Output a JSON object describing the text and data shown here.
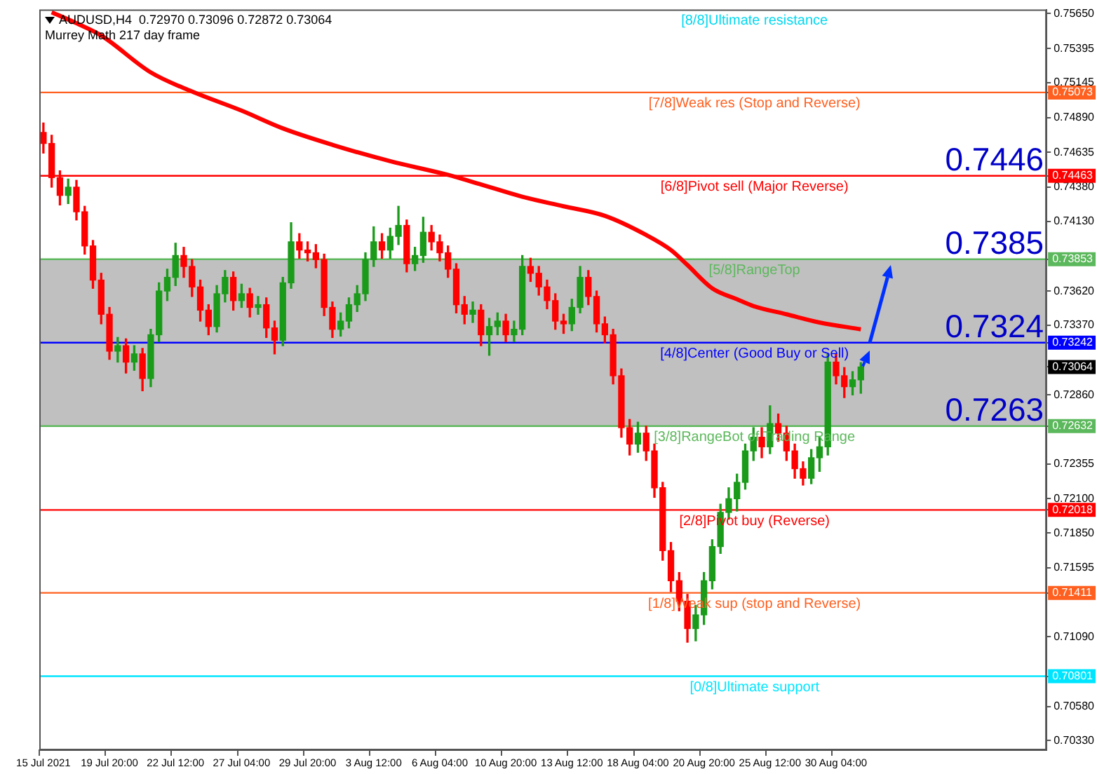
{
  "chart_data": {
    "type": "candlestick",
    "title": "AUDUSD,H4  0.72970 0.73096 0.72872 0.73064",
    "subtitle": "Murrey Math 217 day frame",
    "categories": [
      "15 Jul 2021",
      null,
      null,
      null,
      null,
      null,
      null,
      null,
      "19 Jul 20:00",
      null,
      null,
      null,
      null,
      null,
      null,
      null,
      "22 Jul 12:00",
      null,
      null,
      null,
      null,
      null,
      null,
      null,
      "27 Jul 04:00",
      null,
      null,
      null,
      null,
      null,
      null,
      null,
      "29 Jul 20:00",
      null,
      null,
      null,
      null,
      null,
      null,
      null,
      "3 Aug 12:00",
      null,
      null,
      null,
      null,
      null,
      null,
      null,
      "6 Aug 04:00",
      null,
      null,
      null,
      null,
      null,
      null,
      null,
      "10 Aug 20:00",
      null,
      null,
      null,
      null,
      null,
      null,
      null,
      "13 Aug 12:00",
      null,
      null,
      null,
      null,
      null,
      null,
      null,
      "18 Aug 04:00",
      null,
      null,
      null,
      null,
      null,
      null,
      null,
      "20 Aug 20:00",
      null,
      null,
      null,
      null,
      null,
      null,
      null,
      "25 Aug 12:00",
      null,
      null,
      null,
      null,
      null,
      null,
      null,
      "30 Aug 04:00",
      null,
      null,
      null,
      null,
      null,
      null,
      null,
      null,
      null,
      null,
      null,
      null,
      null,
      null,
      null,
      null,
      null,
      null,
      null,
      null,
      null,
      null,
      null,
      null,
      null
    ],
    "ohlc": [
      [
        0.7478,
        0.7485,
        0.7463,
        0.747
      ],
      [
        0.747,
        0.7476,
        0.7438,
        0.7445
      ],
      [
        0.7445,
        0.745,
        0.7425,
        0.7432
      ],
      [
        0.7432,
        0.7444,
        0.7426,
        0.7438
      ],
      [
        0.7438,
        0.7443,
        0.7414,
        0.742
      ],
      [
        0.742,
        0.7424,
        0.7389,
        0.7395
      ],
      [
        0.7395,
        0.7399,
        0.7364,
        0.737
      ],
      [
        0.737,
        0.7375,
        0.7338,
        0.7345
      ],
      [
        0.7345,
        0.735,
        0.7312,
        0.7318
      ],
      [
        0.7318,
        0.7328,
        0.731,
        0.7322
      ],
      [
        0.7322,
        0.7327,
        0.7302,
        0.731
      ],
      [
        0.731,
        0.7322,
        0.7304,
        0.7316
      ],
      [
        0.7316,
        0.732,
        0.7289,
        0.7298
      ],
      [
        0.7298,
        0.7334,
        0.7292,
        0.733
      ],
      [
        0.733,
        0.7368,
        0.7325,
        0.7362
      ],
      [
        0.7362,
        0.7378,
        0.7355,
        0.7372
      ],
      [
        0.7372,
        0.7397,
        0.7366,
        0.7388
      ],
      [
        0.7388,
        0.7394,
        0.7372,
        0.738
      ],
      [
        0.738,
        0.7385,
        0.7358,
        0.7365
      ],
      [
        0.7365,
        0.737,
        0.734,
        0.7348
      ],
      [
        0.7348,
        0.7352,
        0.733,
        0.7336
      ],
      [
        0.7336,
        0.7366,
        0.7332,
        0.736
      ],
      [
        0.736,
        0.7377,
        0.7354,
        0.7372
      ],
      [
        0.7372,
        0.7376,
        0.7348,
        0.7355
      ],
      [
        0.7355,
        0.7367,
        0.735,
        0.736
      ],
      [
        0.736,
        0.7364,
        0.7343,
        0.735
      ],
      [
        0.735,
        0.7358,
        0.7345,
        0.7352
      ],
      [
        0.7352,
        0.7357,
        0.7328,
        0.7335
      ],
      [
        0.7335,
        0.734,
        0.7316,
        0.7326
      ],
      [
        0.7326,
        0.7372,
        0.7322,
        0.7368
      ],
      [
        0.7368,
        0.7412,
        0.7364,
        0.7398
      ],
      [
        0.7398,
        0.7404,
        0.7386,
        0.7392
      ],
      [
        0.7392,
        0.7398,
        0.7384,
        0.739
      ],
      [
        0.739,
        0.7396,
        0.7379,
        0.7385
      ],
      [
        0.7385,
        0.7389,
        0.7344,
        0.735
      ],
      [
        0.735,
        0.7354,
        0.7328,
        0.7334
      ],
      [
        0.7334,
        0.7346,
        0.7329,
        0.734
      ],
      [
        0.734,
        0.7357,
        0.7335,
        0.7352
      ],
      [
        0.7352,
        0.7366,
        0.7347,
        0.736
      ],
      [
        0.736,
        0.739,
        0.7355,
        0.7385
      ],
      [
        0.7385,
        0.7409,
        0.738,
        0.7398
      ],
      [
        0.7398,
        0.7404,
        0.7386,
        0.7392
      ],
      [
        0.7392,
        0.7408,
        0.7386,
        0.7402
      ],
      [
        0.7402,
        0.7424,
        0.7396,
        0.741
      ],
      [
        0.741,
        0.7414,
        0.7376,
        0.7382
      ],
      [
        0.7382,
        0.7394,
        0.7377,
        0.7388
      ],
      [
        0.7388,
        0.7416,
        0.7383,
        0.7405
      ],
      [
        0.7405,
        0.741,
        0.7392,
        0.7398
      ],
      [
        0.7398,
        0.7403,
        0.7384,
        0.739
      ],
      [
        0.739,
        0.7395,
        0.7372,
        0.7378
      ],
      [
        0.7378,
        0.7382,
        0.7346,
        0.7352
      ],
      [
        0.7352,
        0.7358,
        0.7338,
        0.7345
      ],
      [
        0.7345,
        0.7354,
        0.7339,
        0.7348
      ],
      [
        0.7348,
        0.7352,
        0.7322,
        0.733
      ],
      [
        0.733,
        0.7342,
        0.7315,
        0.7336
      ],
      [
        0.7336,
        0.7346,
        0.733,
        0.734
      ],
      [
        0.734,
        0.7345,
        0.7325,
        0.733
      ],
      [
        0.733,
        0.734,
        0.7325,
        0.7334
      ],
      [
        0.7334,
        0.7388,
        0.733,
        0.738
      ],
      [
        0.738,
        0.7386,
        0.7369,
        0.7375
      ],
      [
        0.7375,
        0.738,
        0.7359,
        0.7365
      ],
      [
        0.7365,
        0.737,
        0.7349,
        0.7355
      ],
      [
        0.7355,
        0.736,
        0.7334,
        0.734
      ],
      [
        0.734,
        0.7345,
        0.7331,
        0.7338
      ],
      [
        0.7338,
        0.7356,
        0.7333,
        0.735
      ],
      [
        0.735,
        0.738,
        0.7346,
        0.7372
      ],
      [
        0.7372,
        0.7377,
        0.7352,
        0.7358
      ],
      [
        0.7358,
        0.7362,
        0.7332,
        0.7338
      ],
      [
        0.7338,
        0.7343,
        0.7324,
        0.733
      ],
      [
        0.733,
        0.7334,
        0.7294,
        0.73
      ],
      [
        0.73,
        0.7305,
        0.7255,
        0.7262
      ],
      [
        0.7262,
        0.7268,
        0.7242,
        0.725
      ],
      [
        0.725,
        0.7266,
        0.7244,
        0.7258
      ],
      [
        0.7258,
        0.7263,
        0.7238,
        0.7245
      ],
      [
        0.7245,
        0.725,
        0.7211,
        0.7218
      ],
      [
        0.7218,
        0.7222,
        0.7165,
        0.7172
      ],
      [
        0.7172,
        0.7178,
        0.7142,
        0.715
      ],
      [
        0.715,
        0.7156,
        0.7128,
        0.7135
      ],
      [
        0.7135,
        0.714,
        0.7105,
        0.7115
      ],
      [
        0.7115,
        0.7132,
        0.7106,
        0.7125
      ],
      [
        0.7125,
        0.7156,
        0.7118,
        0.715
      ],
      [
        0.715,
        0.718,
        0.7144,
        0.7175
      ],
      [
        0.7175,
        0.7206,
        0.717,
        0.72
      ],
      [
        0.72,
        0.7218,
        0.7195,
        0.721
      ],
      [
        0.721,
        0.7228,
        0.7201,
        0.7222
      ],
      [
        0.7222,
        0.725,
        0.7217,
        0.7245
      ],
      [
        0.7245,
        0.7262,
        0.7238,
        0.7255
      ],
      [
        0.7255,
        0.7262,
        0.724,
        0.7248
      ],
      [
        0.7248,
        0.7278,
        0.7243,
        0.7265
      ],
      [
        0.7265,
        0.7272,
        0.7252,
        0.7258
      ],
      [
        0.7258,
        0.7263,
        0.7238,
        0.7245
      ],
      [
        0.7245,
        0.725,
        0.7225,
        0.7232
      ],
      [
        0.7232,
        0.7237,
        0.722,
        0.7225
      ],
      [
        0.7225,
        0.7246,
        0.7221,
        0.724
      ],
      [
        0.724,
        0.7255,
        0.723,
        0.7248
      ],
      [
        0.7248,
        0.7316,
        0.7242,
        0.731
      ],
      [
        0.731,
        0.7316,
        0.7294,
        0.73
      ],
      [
        0.73,
        0.7306,
        0.7284,
        0.7292
      ],
      [
        0.7292,
        0.7303,
        0.7286,
        0.7297
      ],
      [
        0.7297,
        0.73096,
        0.72872,
        0.73064
      ],
      null,
      null,
      null,
      null,
      null,
      null,
      null,
      null,
      null,
      null,
      null,
      null,
      null,
      null,
      null,
      null,
      null,
      null,
      null,
      null,
      null,
      null
    ],
    "series": [
      {
        "type": "line",
        "color": "#ff0000",
        "values": [
          null,
          0.7566,
          null,
          null,
          0.7558,
          null,
          null,
          0.7549,
          null,
          null,
          null,
          null,
          null,
          0.7522,
          null,
          null,
          null,
          null,
          0.7508,
          null,
          null,
          null,
          null,
          null,
          0.7494,
          null,
          null,
          null,
          null,
          0.7481,
          null,
          null,
          null,
          null,
          null,
          0.7469,
          null,
          null,
          null,
          null,
          null,
          null,
          0.7457,
          null,
          null,
          null,
          null,
          null,
          null,
          0.7447,
          null,
          null,
          null,
          0.744,
          null,
          null,
          null,
          null,
          0.7431,
          null,
          null,
          null,
          null,
          0.7424,
          null,
          null,
          null,
          null,
          0.7417,
          null,
          null,
          null,
          null,
          0.7403,
          null,
          null,
          0.7392,
          null,
          0.7381,
          null,
          null,
          0.7364,
          null,
          null,
          0.7356,
          null,
          0.7351,
          null,
          null,
          null,
          0.7345,
          null,
          null,
          null,
          0.7339,
          null,
          null,
          null,
          null,
          0.7334,
          null,
          null,
          null,
          null,
          null,
          null,
          null,
          null,
          null,
          null,
          null,
          null,
          null,
          null,
          null,
          null,
          null,
          null,
          null,
          null,
          null,
          null
        ]
      }
    ],
    "ylim": [
      0.7026,
      0.7568
    ],
    "yticks": [
      {
        "value": 0.7565,
        "label": "0.75650"
      },
      {
        "value": 0.75395,
        "label": "0.75395"
      },
      {
        "value": 0.75145,
        "label": "0.75145"
      },
      {
        "value": 0.7489,
        "label": "0.74890"
      },
      {
        "value": 0.74635,
        "label": "0.74635"
      },
      {
        "value": 0.7438,
        "label": "0.74380"
      },
      {
        "value": 0.7413,
        "label": "0.74130"
      },
      {
        "value": 0.7362,
        "label": "0.73620"
      },
      {
        "value": 0.7337,
        "label": "0.73370"
      },
      0.75073,
      0.74463,
      0.73853,
      0.73242,
      0.73064,
      0.72632,
      0.72018,
      0.71411,
      0.70801,
      {
        "value": 0.7286,
        "label": "0.72860"
      },
      {
        "value": 0.72355,
        "label": "0.72355"
      },
      {
        "value": 0.721,
        "label": "0.72100"
      },
      {
        "value": 0.7185,
        "label": "0.71850"
      },
      {
        "value": 0.71595,
        "label": "0.71595"
      },
      {
        "value": 0.7109,
        "label": "0.71090"
      },
      {
        "value": 0.7058,
        "label": "0.70580"
      },
      {
        "value": 0.7033,
        "label": "0.70330"
      }
    ],
    "ref_lines": [
      {
        "axis": "y",
        "value": 0.75073,
        "label": "[7/8]Weak res (Stop and Reverse)",
        "color": "#ff6020"
      },
      {
        "axis": "y",
        "value": 0.74463,
        "label": "[6/8]Pivot sell (Major Reverse)",
        "color": "#ff0000"
      },
      {
        "axis": "y",
        "value": 0.73853,
        "label": "[5/8]RangeTop",
        "color": "#5cb85c"
      },
      {
        "axis": "y",
        "value": 0.73242,
        "label": "[4/8]Center (Good Buy or Sell)",
        "color": "#0000ff"
      },
      {
        "axis": "y",
        "value": 0.72632,
        "label": "[3/8]RangeBot of Trading Range",
        "color": "#5cb85c"
      },
      {
        "axis": "y",
        "value": 0.72018,
        "label": "[2/8]Pivot buy (Reverse)",
        "color": "#ff0000"
      },
      {
        "axis": "y",
        "value": 0.71411,
        "label": "[1/8]Weak sup (stop and Reverse)",
        "color": "#ff6020"
      },
      {
        "axis": "y",
        "value": 0.70801,
        "label": "[0/8]Ultimate support",
        "color": "#00e5ff"
      }
    ],
    "bands": [
      {
        "axis": "y",
        "from": 0.72632,
        "to": 0.73853,
        "color": "#c0c0c0"
      }
    ],
    "annotations": [
      "[8/8]Ultimate resistance",
      {
        "text": "0.7446",
        "y": 0.7446
      },
      {
        "text": "0.7385",
        "y": 0.7385
      },
      {
        "text": "0.7324",
        "y": 0.7324
      },
      {
        "text": "0.7263",
        "y": 0.7263
      }
    ]
  }
}
